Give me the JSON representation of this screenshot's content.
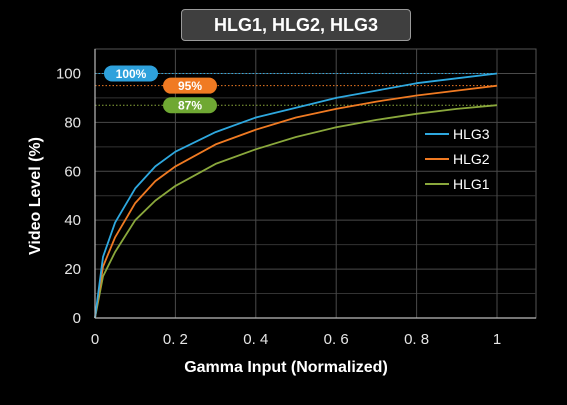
{
  "chart_data": {
    "type": "line",
    "title": "HLG1, HLG2, HLG3",
    "xlabel": "Gamma Input (Normalized)",
    "ylabel": "Video Level (%)",
    "xlim": [
      0,
      1
    ],
    "ylim": [
      0,
      110
    ],
    "x_ticks": [
      "0",
      "0. 2",
      "0. 4",
      "0. 6",
      "0. 8",
      "1"
    ],
    "y_ticks": [
      "0",
      "20",
      "40",
      "60",
      "80",
      "100"
    ],
    "grid": true,
    "legend_position": "right",
    "series": [
      {
        "name": "HLG3",
        "color": "#2ea8df",
        "peak": 100,
        "peak_label": "100%",
        "x": [
          0,
          0.02,
          0.05,
          0.1,
          0.15,
          0.2,
          0.3,
          0.4,
          0.5,
          0.6,
          0.7,
          0.8,
          0.9,
          1.0
        ],
        "y": [
          0,
          25,
          39,
          53,
          62,
          68,
          76,
          82,
          86,
          90,
          93,
          96,
          98,
          100
        ]
      },
      {
        "name": "HLG2",
        "color": "#f07a22",
        "peak": 95,
        "peak_label": "95%",
        "x": [
          0,
          0.02,
          0.05,
          0.1,
          0.15,
          0.2,
          0.3,
          0.4,
          0.5,
          0.6,
          0.7,
          0.8,
          0.9,
          1.0
        ],
        "y": [
          0,
          21,
          33,
          47,
          56,
          62,
          71,
          77,
          82,
          85.5,
          88.5,
          91,
          93,
          95
        ]
      },
      {
        "name": "HLG1",
        "color": "#8aa83c",
        "peak": 87,
        "peak_label": "87%",
        "x": [
          0,
          0.02,
          0.05,
          0.1,
          0.15,
          0.2,
          0.3,
          0.4,
          0.5,
          0.6,
          0.7,
          0.8,
          0.9,
          1.0
        ],
        "y": [
          0,
          17,
          27,
          40,
          48,
          54,
          63,
          69,
          74,
          78,
          81,
          83.5,
          85.5,
          87
        ]
      }
    ],
    "peak_pill_colors": [
      "#2ea1dc",
      "#f07a22",
      "#6fa833"
    ]
  }
}
